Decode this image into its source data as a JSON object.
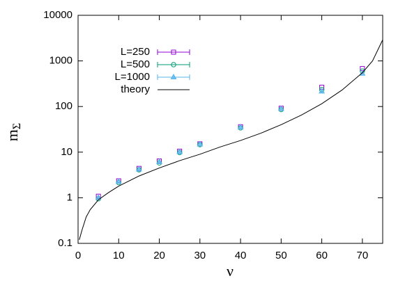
{
  "chart_data": {
    "type": "scatter",
    "xlabel": "ν",
    "ylabel": "m",
    "ylabel_subscript": "Σ",
    "xlim": [
      0,
      75
    ],
    "xticks": [
      0,
      10,
      20,
      30,
      40,
      50,
      60,
      70
    ],
    "ylim": [
      0.1,
      10000
    ],
    "yticks": [
      0.1,
      1,
      10,
      100,
      1000,
      10000
    ],
    "log_y": true,
    "legend": "upper left",
    "series": [
      {
        "name": "L=250",
        "color": "#9400d3",
        "marker": "square",
        "x": [
          5,
          10,
          15,
          20,
          25,
          30,
          40,
          50,
          60,
          70
        ],
        "values": [
          1.08,
          2.35,
          4.4,
          6.4,
          10.5,
          15.2,
          36,
          92,
          265,
          680
        ]
      },
      {
        "name": "L=500",
        "color": "#009e73",
        "marker": "circle",
        "x": [
          5,
          10,
          15,
          20,
          25,
          30,
          40,
          50,
          60,
          70
        ],
        "values": [
          0.95,
          2.15,
          4.1,
          5.8,
          9.8,
          14.6,
          34,
          86,
          235,
          600
        ]
      },
      {
        "name": "L=1000",
        "color": "#56b4e9",
        "marker": "triangle",
        "x": [
          5,
          10,
          15,
          20,
          25,
          30,
          40,
          50,
          60,
          70
        ],
        "values": [
          1.0,
          2.25,
          4.2,
          6.1,
          10.1,
          14.9,
          35,
          89,
          215,
          530
        ]
      },
      {
        "name": "theory",
        "color": "#000000",
        "marker": "line",
        "x": [
          0.3,
          1,
          2,
          3,
          5,
          7.5,
          10,
          15,
          20,
          25,
          30,
          35,
          40,
          45,
          50,
          55,
          60,
          65,
          70,
          72.5,
          75
        ],
        "values": [
          0.12,
          0.2,
          0.38,
          0.55,
          0.9,
          1.3,
          1.8,
          3,
          4.5,
          6.5,
          9,
          13,
          18,
          26,
          40,
          65,
          115,
          230,
          550,
          1000,
          2900
        ]
      }
    ]
  }
}
